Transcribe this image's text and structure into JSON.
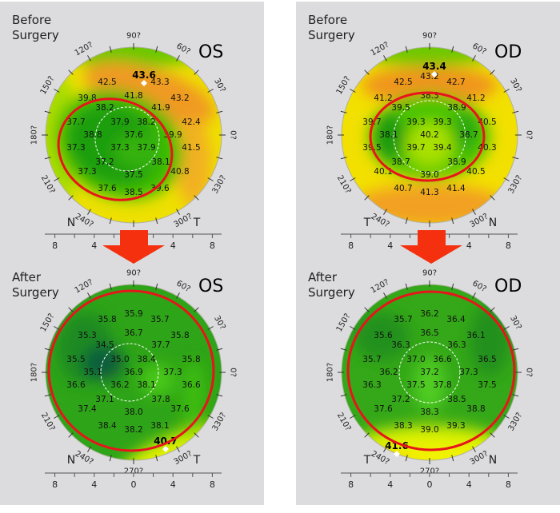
{
  "angle_labels": [
    "0?",
    "30?",
    "60?",
    "90?",
    "120?",
    "150?",
    "180?",
    "210?",
    "240?",
    "270?",
    "300?",
    "330?"
  ],
  "scale_labels": [
    "8",
    "4",
    "0",
    "4",
    "8"
  ],
  "colors": {
    "panel_bg": "#dcdcde",
    "marker_ring": "#e8141c",
    "arrow": "#f5300f"
  },
  "panels": [
    {
      "title_line1": "Before",
      "title_line2": "Surgery",
      "eye": "OS",
      "left_letter": "N",
      "right_letter": "T",
      "max_value": "43.6",
      "values": [
        "",
        "42.5",
        "43.3",
        "39.8",
        "41.8",
        "43.2",
        "38.2",
        "41.9",
        "37.7",
        "37.9",
        "38.2",
        "42.4",
        "38.8",
        "37.6",
        "39.9",
        "37.3",
        "37.3",
        "37.9",
        "41.5",
        "37.2",
        "38.1",
        "37.3",
        "37.5",
        "40.8",
        "37.6",
        "38.5",
        "39.6"
      ]
    },
    {
      "title_line1": "Before",
      "title_line2": "Surgery",
      "eye": "OD",
      "left_letter": "T",
      "right_letter": "N",
      "max_value": "43.4",
      "values": [
        "43.2",
        "42.5",
        "42.7",
        "41.2",
        "38.3",
        "41.2",
        "39.5",
        "38.9",
        "39.7",
        "39.3",
        "39.3",
        "40.5",
        "38.1",
        "40.2",
        "38.7",
        "39.5",
        "39.7",
        "39.4",
        "40.3",
        "38.7",
        "38.9",
        "40.1",
        "39.0",
        "40.5",
        "40.7",
        "41.3",
        "41.4"
      ]
    },
    {
      "title_line1": "After",
      "title_line2": "Surgery",
      "eye": "OS",
      "left_letter": "N",
      "right_letter": "T",
      "max_value": "40.7",
      "values": [
        "35.9",
        "35.8",
        "35.7",
        "35.3",
        "36.7",
        "35.8",
        "34.5",
        "37.7",
        "35.5",
        "35.0",
        "38.4",
        "35.8",
        "35.1",
        "36.9",
        "37.3",
        "36.6",
        "36.2",
        "38.1",
        "36.6",
        "37.1",
        "37.8",
        "37.4",
        "38.0",
        "37.6",
        "38.4",
        "38.2",
        "38.1"
      ]
    },
    {
      "title_line1": "After",
      "title_line2": "Surgery",
      "eye": "OD",
      "left_letter": "T",
      "right_letter": "N",
      "max_value": "41.6",
      "values": [
        "36.2",
        "35.7",
        "36.4",
        "35.6",
        "36.5",
        "36.1",
        "36.3",
        "36.3",
        "35.7",
        "37.0",
        "36.6",
        "36.5",
        "36.2",
        "37.2",
        "37.3",
        "36.3",
        "37.5",
        "37.8",
        "37.5",
        "37.2",
        "38.5",
        "37.6",
        "38.3",
        "38.8",
        "38.3",
        "39.0",
        "39.3"
      ]
    }
  ]
}
